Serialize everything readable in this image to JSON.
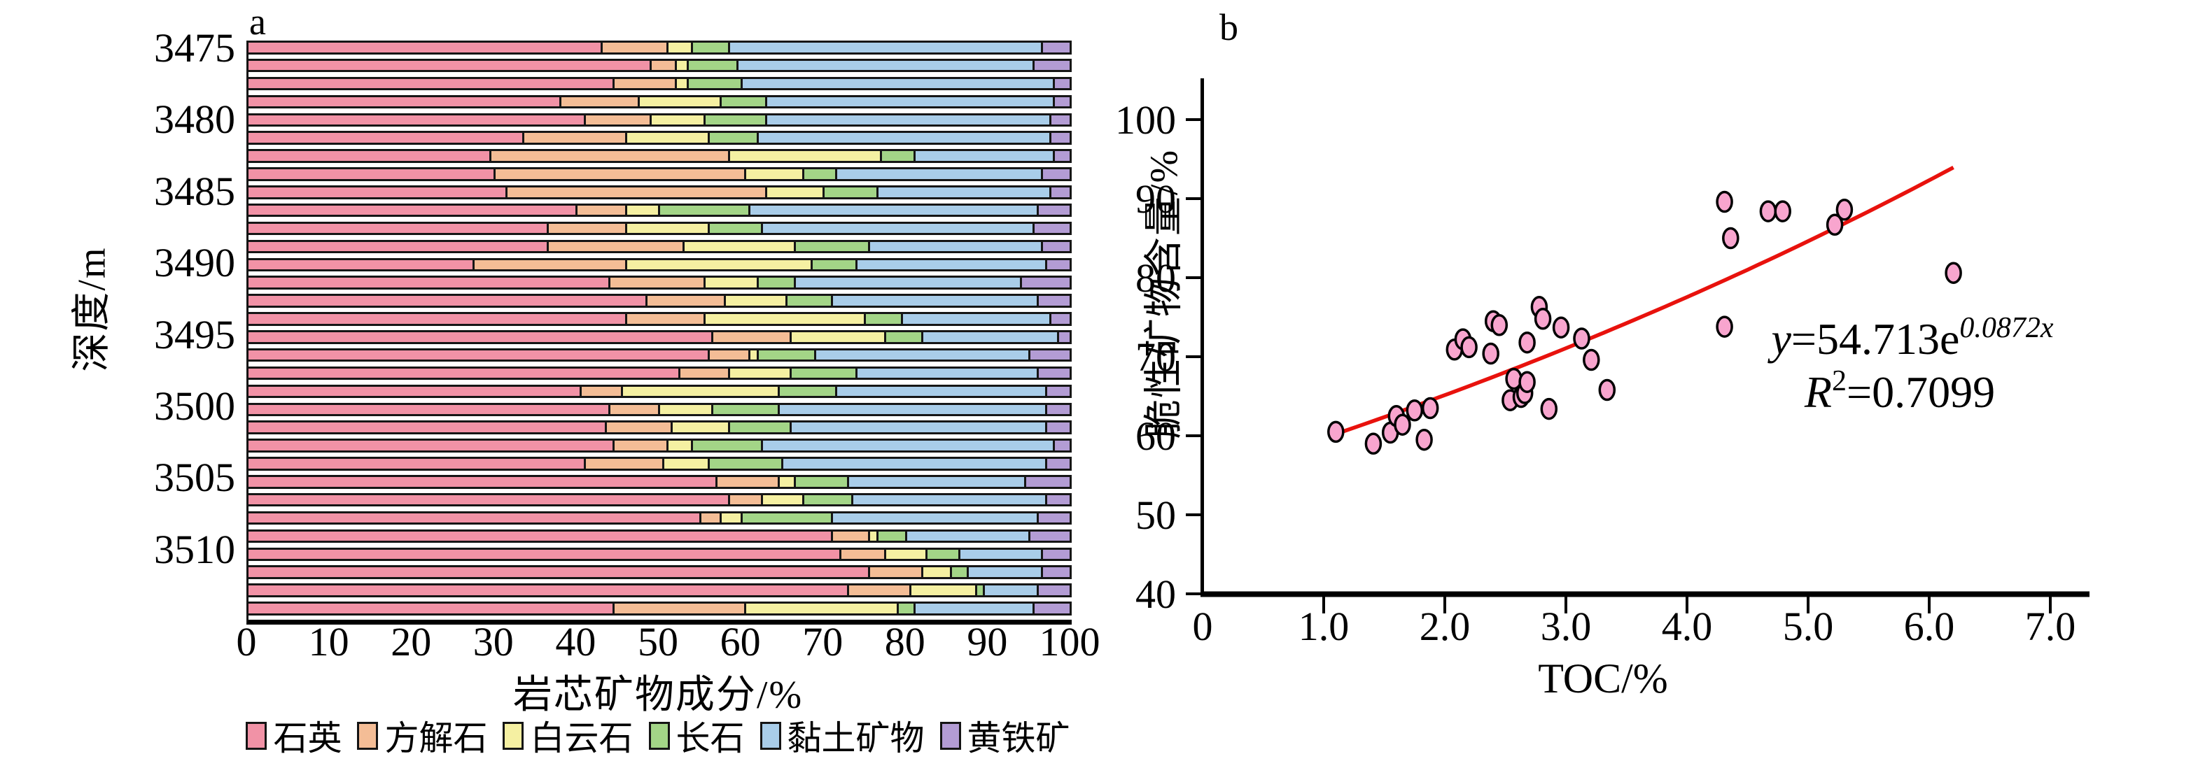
{
  "figure": {
    "background": "#ffffff",
    "axis_color": "#000000"
  },
  "chart_data": [
    {
      "type": "bar",
      "panel_label": "a",
      "orientation": "horizontal-stacked",
      "xlabel": "岩芯矿物成分/%",
      "ylabel": "深度/m",
      "xlim": [
        0,
        100
      ],
      "x_ticks": [
        0,
        10,
        20,
        30,
        40,
        50,
        60,
        70,
        80,
        90,
        100
      ],
      "depth_ticks": {
        "labels": [
          "3475",
          "3480",
          "3485",
          "3490",
          "3495",
          "3500",
          "3505",
          "3510"
        ],
        "fracs": [
          0.0115,
          0.1353,
          0.2591,
          0.3829,
          0.5067,
          0.6304,
          0.7542,
          0.878
        ]
      },
      "series_names": [
        "石英",
        "方解石",
        "白云石",
        "长石",
        "黏土矿物",
        "黄铁矿"
      ],
      "series_colors": [
        "#F192A6",
        "#F4BD96",
        "#F5F0A2",
        "#A3D587",
        "#A9CDE9",
        "#B39CD4"
      ],
      "bars": [
        [
          43,
          8,
          3,
          4.5,
          38,
          3.5
        ],
        [
          49,
          3,
          1.5,
          6,
          36,
          4.5
        ],
        [
          44.5,
          7.5,
          1.5,
          6.5,
          38,
          2
        ],
        [
          38,
          9.5,
          10,
          5.5,
          35,
          2
        ],
        [
          41,
          8,
          6.5,
          7.5,
          34.5,
          2.5
        ],
        [
          33.5,
          12.5,
          10,
          6,
          35.5,
          2.5
        ],
        [
          29.5,
          29,
          18.5,
          4,
          17,
          2
        ],
        [
          30,
          30.5,
          7,
          4,
          25,
          3.5
        ],
        [
          31.5,
          31.5,
          7,
          6.5,
          21,
          2.5
        ],
        [
          40,
          6,
          4,
          11,
          35,
          4
        ],
        [
          36.5,
          9.5,
          10,
          6.5,
          33,
          4.5
        ],
        [
          36.5,
          16.5,
          13.5,
          9,
          21,
          3.5
        ],
        [
          27.5,
          18.5,
          22.5,
          5.5,
          23,
          3
        ],
        [
          44,
          11.5,
          6.5,
          4.5,
          27.5,
          6
        ],
        [
          48.5,
          9.5,
          7.5,
          5.5,
          25,
          4
        ],
        [
          46,
          9.5,
          19.5,
          4.5,
          18,
          2.5
        ],
        [
          56.5,
          9.5,
          11.5,
          4.5,
          16.5,
          1.5
        ],
        [
          56,
          5,
          1,
          7,
          26,
          5
        ],
        [
          52.5,
          6,
          7.5,
          8,
          22,
          4
        ],
        [
          40.5,
          5,
          19,
          7,
          25.5,
          3
        ],
        [
          44,
          6,
          6.5,
          8,
          32.5,
          3
        ],
        [
          43.5,
          8,
          7,
          7.5,
          31,
          3
        ],
        [
          44.5,
          6.5,
          3,
          8.5,
          35.5,
          2
        ],
        [
          41,
          9.5,
          5.5,
          9,
          32,
          3
        ],
        [
          57,
          7.5,
          2,
          6.5,
          21.5,
          5.5
        ],
        [
          58.5,
          4,
          5,
          6,
          23.5,
          3
        ],
        [
          55,
          2.5,
          2.5,
          11,
          25,
          4
        ],
        [
          71,
          4.5,
          1,
          3.5,
          15,
          5
        ],
        [
          72,
          5.5,
          5,
          4,
          10,
          3.5
        ],
        [
          75.5,
          6.5,
          3.5,
          2,
          9,
          3.5
        ],
        [
          73,
          7.5,
          8,
          1,
          6.5,
          4
        ],
        [
          44.5,
          16,
          18.5,
          2,
          14.5,
          4.5
        ]
      ],
      "legend_position": "bottom"
    },
    {
      "type": "scatter",
      "panel_label": "b",
      "xlabel": "TOC/%",
      "ylabel": "脆性矿物含量/%",
      "xlim": [
        0,
        7.5
      ],
      "ylim": [
        40,
        105
      ],
      "x_ticks": [
        "0",
        "1.0",
        "2.0",
        "3.0",
        "4.0",
        "5.0",
        "6.0",
        "7.0"
      ],
      "x_tick_values": [
        0,
        1,
        2,
        3,
        4,
        5,
        6,
        7
      ],
      "y_ticks": [
        100,
        90,
        80,
        70,
        60,
        50,
        40
      ],
      "marker_color": "#F8A5CE",
      "marker_edge_color": "#000000",
      "points": [
        [
          1.1,
          60.5
        ],
        [
          1.41,
          59.0
        ],
        [
          1.55,
          60.4
        ],
        [
          1.6,
          62.5
        ],
        [
          1.65,
          61.4
        ],
        [
          1.75,
          63.2
        ],
        [
          1.83,
          59.5
        ],
        [
          1.88,
          63.5
        ],
        [
          2.08,
          70.9
        ],
        [
          2.15,
          72.2
        ],
        [
          2.2,
          71.2
        ],
        [
          2.38,
          70.4
        ],
        [
          2.4,
          74.5
        ],
        [
          2.45,
          74.0
        ],
        [
          2.54,
          64.5
        ],
        [
          2.57,
          67.2
        ],
        [
          2.63,
          64.9
        ],
        [
          2.66,
          65.4
        ],
        [
          2.68,
          66.8
        ],
        [
          2.68,
          71.8
        ],
        [
          2.78,
          76.3
        ],
        [
          2.81,
          74.8
        ],
        [
          2.86,
          63.4
        ],
        [
          2.96,
          73.7
        ],
        [
          3.13,
          72.3
        ],
        [
          3.21,
          69.6
        ],
        [
          3.34,
          65.8
        ],
        [
          4.31,
          73.8
        ],
        [
          4.31,
          89.6
        ],
        [
          4.36,
          85.0
        ],
        [
          4.67,
          88.4
        ],
        [
          4.79,
          88.4
        ],
        [
          5.22,
          86.7
        ],
        [
          5.3,
          88.6
        ],
        [
          6.2,
          80.6
        ]
      ],
      "fit": {
        "a": 54.713,
        "b": 0.0872,
        "x_start": 1.1,
        "x_end": 6.2,
        "color": "#E8120D",
        "eq_prefix": "y",
        "eq_body": "=54.713e",
        "eq_sup": "0.0872x",
        "r2_prefix": "R",
        "r2_sup": "2",
        "r2_body": "=0.7099"
      }
    }
  ]
}
